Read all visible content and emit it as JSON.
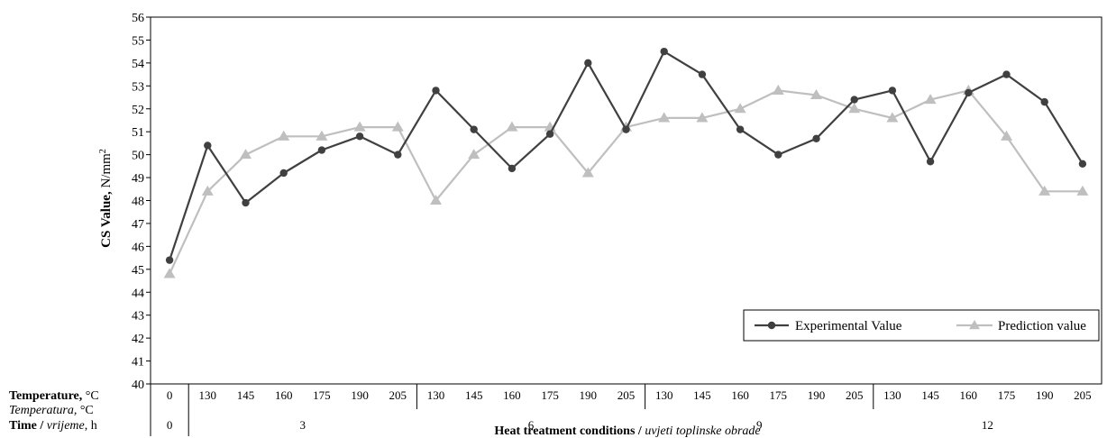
{
  "chart_data": {
    "type": "line",
    "ylabel": "CS Value,",
    "ylabel_unit": "N/mm",
    "ylabel_unit_sup": "2",
    "ylim": [
      40,
      56
    ],
    "yticks": [
      40,
      41,
      42,
      43,
      44,
      45,
      46,
      47,
      48,
      49,
      50,
      51,
      52,
      53,
      54,
      55,
      56
    ],
    "categories_temperature": [
      "0",
      "130",
      "145",
      "160",
      "175",
      "190",
      "205",
      "130",
      "145",
      "160",
      "175",
      "190",
      "205",
      "130",
      "145",
      "160",
      "175",
      "190",
      "205",
      "130",
      "145",
      "160",
      "175",
      "190",
      "205"
    ],
    "time_groups": [
      {
        "label": "0",
        "count": 1
      },
      {
        "label": "3",
        "count": 6
      },
      {
        "label": "6",
        "count": 6
      },
      {
        "label": "9",
        "count": 6
      },
      {
        "label": "12",
        "count": 6
      }
    ],
    "row_labels": {
      "temperature_bold": "Temperature,",
      "temperature_unit": "°C",
      "temperatura_italic": "Temperatura,",
      "temperatura_unit": "°C",
      "time_bold": "Time /",
      "time_italic": "vrijeme",
      "time_unit": ", h"
    },
    "xlabel_bold": "Heat treatment conditions /",
    "xlabel_italic": "uvjeti toplinske obrade",
    "series": [
      {
        "name": "Experimental Value",
        "color": "#404040",
        "marker": "circle",
        "values": [
          45.4,
          50.4,
          47.9,
          49.2,
          50.2,
          50.8,
          50.0,
          52.8,
          51.1,
          49.4,
          50.9,
          54.0,
          51.1,
          54.5,
          53.5,
          51.1,
          50.0,
          50.7,
          52.4,
          52.8,
          49.7,
          52.7,
          53.5,
          52.3,
          49.6
        ]
      },
      {
        "name": "Prediction value",
        "color": "#bfbfbf",
        "marker": "triangle",
        "values": [
          44.8,
          48.4,
          50.0,
          50.8,
          50.8,
          51.2,
          51.2,
          48.0,
          50.0,
          51.2,
          51.2,
          49.2,
          51.2,
          51.6,
          51.6,
          52.0,
          52.8,
          52.6,
          52.0,
          51.6,
          52.4,
          52.8,
          50.8,
          48.4,
          48.4
        ]
      }
    ],
    "legend_position": "bottom-right",
    "grid": false
  }
}
